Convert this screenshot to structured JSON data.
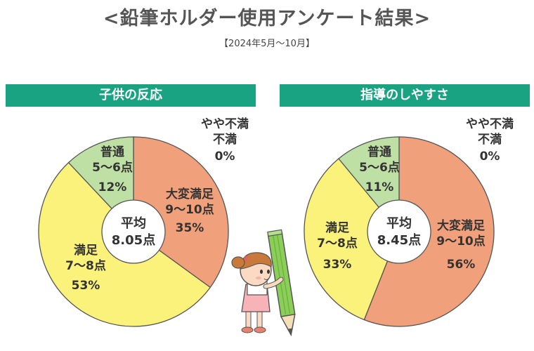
{
  "header": {
    "title": "<鉛筆ホルダー使用アンケート結果>",
    "period": "【2024年5月～10月】"
  },
  "colors": {
    "banner": "#1aa383",
    "very_satisfied": "#f0a07a",
    "satisfied": "#fbf27c",
    "normal": "#bfe0a4",
    "pencil": "#8ccf58",
    "outline": "#555555"
  },
  "chart_data": [
    {
      "type": "pie",
      "title": "子供の反応",
      "center_label": [
        "平均",
        "8.05点"
      ],
      "slices": [
        {
          "key": "very_satisfied",
          "label": [
            "大変満足",
            "9～10点"
          ],
          "value": 35,
          "value_text": "35%"
        },
        {
          "key": "satisfied",
          "label": [
            "満足",
            "7～8点"
          ],
          "value": 53,
          "value_text": "53%"
        },
        {
          "key": "normal",
          "label": [
            "普通",
            "5～6点"
          ],
          "value": 12,
          "value_text": "12%"
        },
        {
          "key": "dissatisfied",
          "label": [
            "やや不満",
            "不満"
          ],
          "value": 0,
          "value_text": "0%"
        }
      ]
    },
    {
      "type": "pie",
      "title": "指導のしやすさ",
      "center_label": [
        "平均",
        "8.45点"
      ],
      "slices": [
        {
          "key": "very_satisfied",
          "label": [
            "大変満足",
            "9～10点"
          ],
          "value": 56,
          "value_text": "56%"
        },
        {
          "key": "satisfied",
          "label": [
            "満足",
            "7～8点"
          ],
          "value": 33,
          "value_text": "33%"
        },
        {
          "key": "normal",
          "label": [
            "普通",
            "5～6点"
          ],
          "value": 11,
          "value_text": "11%"
        },
        {
          "key": "dissatisfied",
          "label": [
            "やや不満",
            "不満"
          ],
          "value": 0,
          "value_text": "0%"
        }
      ]
    }
  ]
}
